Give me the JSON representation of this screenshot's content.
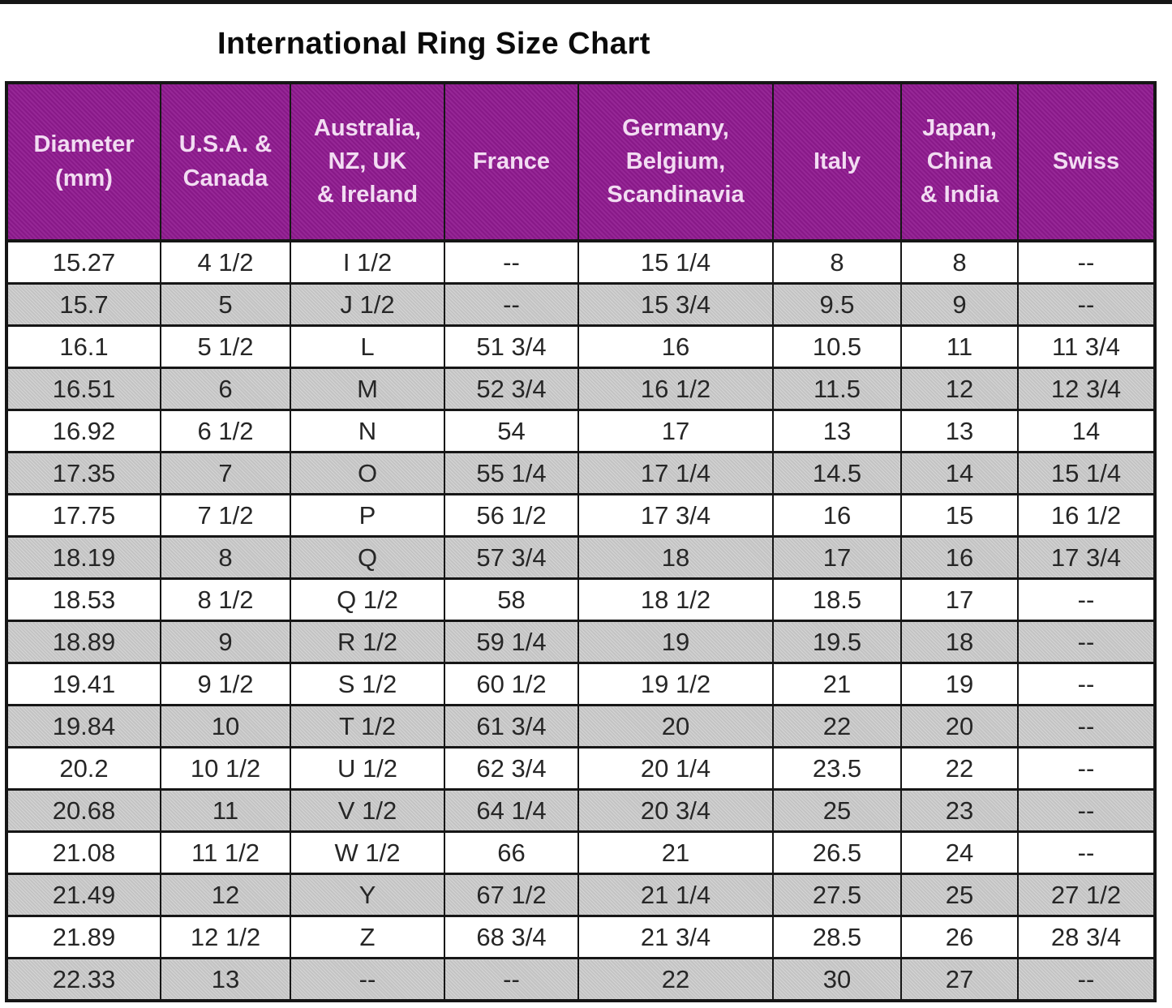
{
  "title": "International Ring Size Chart",
  "colors": {
    "header_bg": "#8F1A8F",
    "header_text": "#F2DCF2",
    "row_bg": "#FFFFFF",
    "row_alt_bg": "#C9C9C9",
    "border": "#161616",
    "cell_text": "#262626",
    "title_text": "#0B0B0B"
  },
  "chart_data": {
    "type": "table",
    "title": "International Ring Size Chart",
    "columns": [
      "Diameter\n(mm)",
      "U.S.A. &\nCanada",
      "Australia,\nNZ, UK\n& Ireland",
      "France",
      "Germany,\nBelgium,\nScandinavia",
      "Italy",
      "Japan,\nChina\n& India",
      "Swiss"
    ],
    "rows": [
      [
        "15.27",
        "4 1/2",
        "I 1/2",
        "--",
        "15 1/4",
        "8",
        "8",
        "--"
      ],
      [
        "15.7",
        "5",
        "J 1/2",
        "--",
        "15 3/4",
        "9.5",
        "9",
        "--"
      ],
      [
        "16.1",
        "5 1/2",
        "L",
        "51 3/4",
        "16",
        "10.5",
        "11",
        "11 3/4"
      ],
      [
        "16.51",
        "6",
        "M",
        "52 3/4",
        "16 1/2",
        "11.5",
        "12",
        "12 3/4"
      ],
      [
        "16.92",
        "6 1/2",
        "N",
        "54",
        "17",
        "13",
        "13",
        "14"
      ],
      [
        "17.35",
        "7",
        "O",
        "55 1/4",
        "17 1/4",
        "14.5",
        "14",
        "15 1/4"
      ],
      [
        "17.75",
        "7 1/2",
        "P",
        "56 1/2",
        "17 3/4",
        "16",
        "15",
        "16 1/2"
      ],
      [
        "18.19",
        "8",
        "Q",
        "57 3/4",
        "18",
        "17",
        "16",
        "17 3/4"
      ],
      [
        "18.53",
        "8 1/2",
        "Q 1/2",
        "58",
        "18 1/2",
        "18.5",
        "17",
        "--"
      ],
      [
        "18.89",
        "9",
        "R 1/2",
        "59 1/4",
        "19",
        "19.5",
        "18",
        "--"
      ],
      [
        "19.41",
        "9 1/2",
        "S 1/2",
        "60 1/2",
        "19 1/2",
        "21",
        "19",
        "--"
      ],
      [
        "19.84",
        "10",
        "T 1/2",
        "61 3/4",
        "20",
        "22",
        "20",
        "--"
      ],
      [
        "20.2",
        "10 1/2",
        "U 1/2",
        "62 3/4",
        "20 1/4",
        "23.5",
        "22",
        "--"
      ],
      [
        "20.68",
        "11",
        "V 1/2",
        "64 1/4",
        "20 3/4",
        "25",
        "23",
        "--"
      ],
      [
        "21.08",
        "11 1/2",
        "W 1/2",
        "66",
        "21",
        "26.5",
        "24",
        "--"
      ],
      [
        "21.49",
        "12",
        "Y",
        "67 1/2",
        "21 1/4",
        "27.5",
        "25",
        "27 1/2"
      ],
      [
        "21.89",
        "12 1/2",
        "Z",
        "68 3/4",
        "21 3/4",
        "28.5",
        "26",
        "28 3/4"
      ],
      [
        "22.33",
        "13",
        "--",
        "--",
        "22",
        "30",
        "27",
        "--"
      ]
    ],
    "layout": {
      "header_row_shaded": true,
      "alternating_row_shading": "even rows gray, odd rows white",
      "grid": true,
      "last_row_partially_cropped": true
    }
  }
}
